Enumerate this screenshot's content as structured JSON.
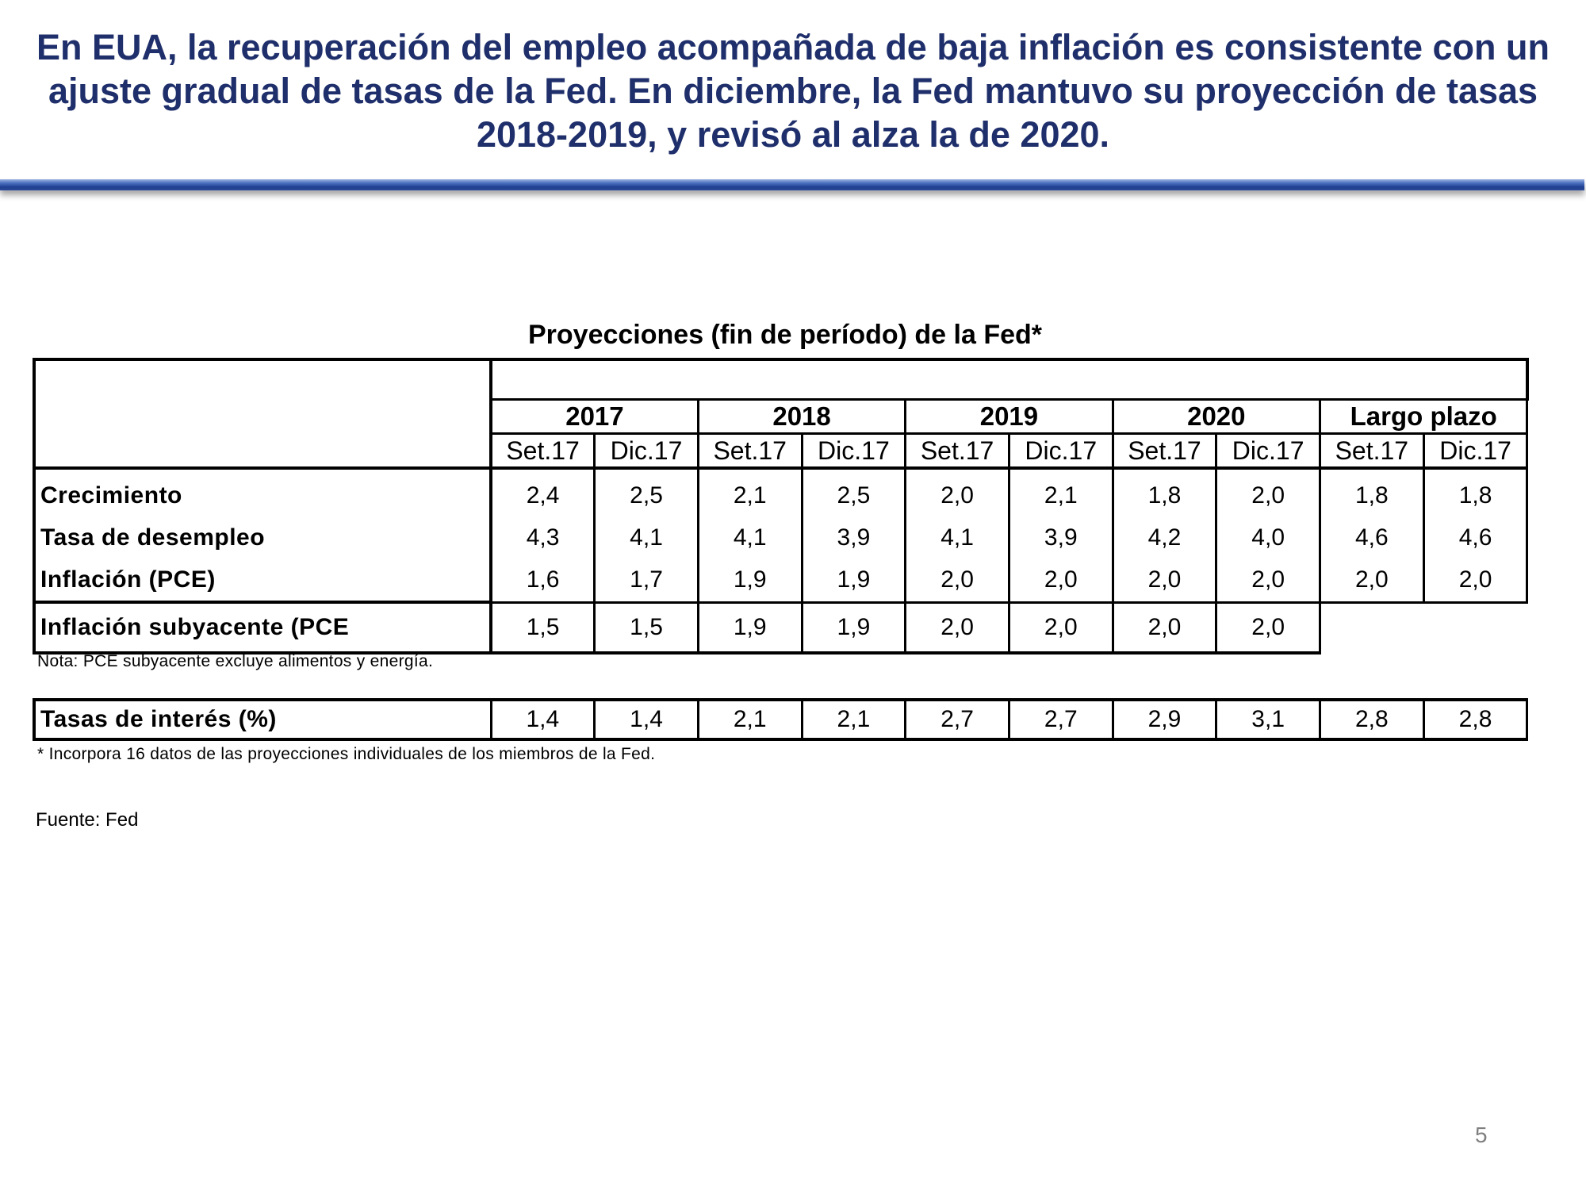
{
  "slide": {
    "title": "En EUA, la recuperación del empleo acompañada de baja inflación es consistente con un ajuste gradual de tasas de la Fed. En diciembre, la Fed mantuvo su proyección de tasas 2018-2019, y revisó al alza la de 2020.",
    "page_number": "5",
    "colors": {
      "title": "#1f2f6b",
      "bar": "#2b4a9a"
    }
  },
  "table": {
    "title": "Proyecciones (fin de período) de la Fed*",
    "years": [
      "2017",
      "2018",
      "2019",
      "2020",
      "Largo plazo"
    ],
    "periods": [
      "Set.17",
      "Dic.17",
      "Set.17",
      "Dic.17",
      "Set.17",
      "Dic.17",
      "Set.17",
      "Dic.17",
      "Set.17",
      "Dic.17"
    ],
    "rows": [
      {
        "label": "Crecimiento",
        "values": [
          "2,4",
          "2,5",
          "2,1",
          "2,5",
          "2,0",
          "2,1",
          "1,8",
          "2,0",
          "1,8",
          "1,8"
        ]
      },
      {
        "label": "Tasa de desempleo",
        "values": [
          "4,3",
          "4,1",
          "4,1",
          "3,9",
          "4,1",
          "3,9",
          "4,2",
          "4,0",
          "4,6",
          "4,6"
        ]
      },
      {
        "label": "Inflación (PCE)",
        "values": [
          "1,6",
          "1,7",
          "1,9",
          "1,9",
          "2,0",
          "2,0",
          "2,0",
          "2,0",
          "2,0",
          "2,0"
        ]
      },
      {
        "label": "Inflación subyacente (PCE",
        "values": [
          "1,5",
          "1,5",
          "1,9",
          "1,9",
          "2,0",
          "2,0",
          "2,0",
          "2,0"
        ]
      }
    ],
    "note": "Nota: PCE subyacente excluye alimentos y energía.",
    "rates": {
      "label": "Tasas de interés (%)",
      "values": [
        "1,4",
        "1,4",
        "2,1",
        "2,1",
        "2,7",
        "2,7",
        "2,9",
        "3,1",
        "2,8",
        "2,8"
      ]
    },
    "footnote": "* Incorpora 16 datos de las proyecciones individuales de los miembros de la Fed.",
    "source": "Fuente: Fed"
  }
}
